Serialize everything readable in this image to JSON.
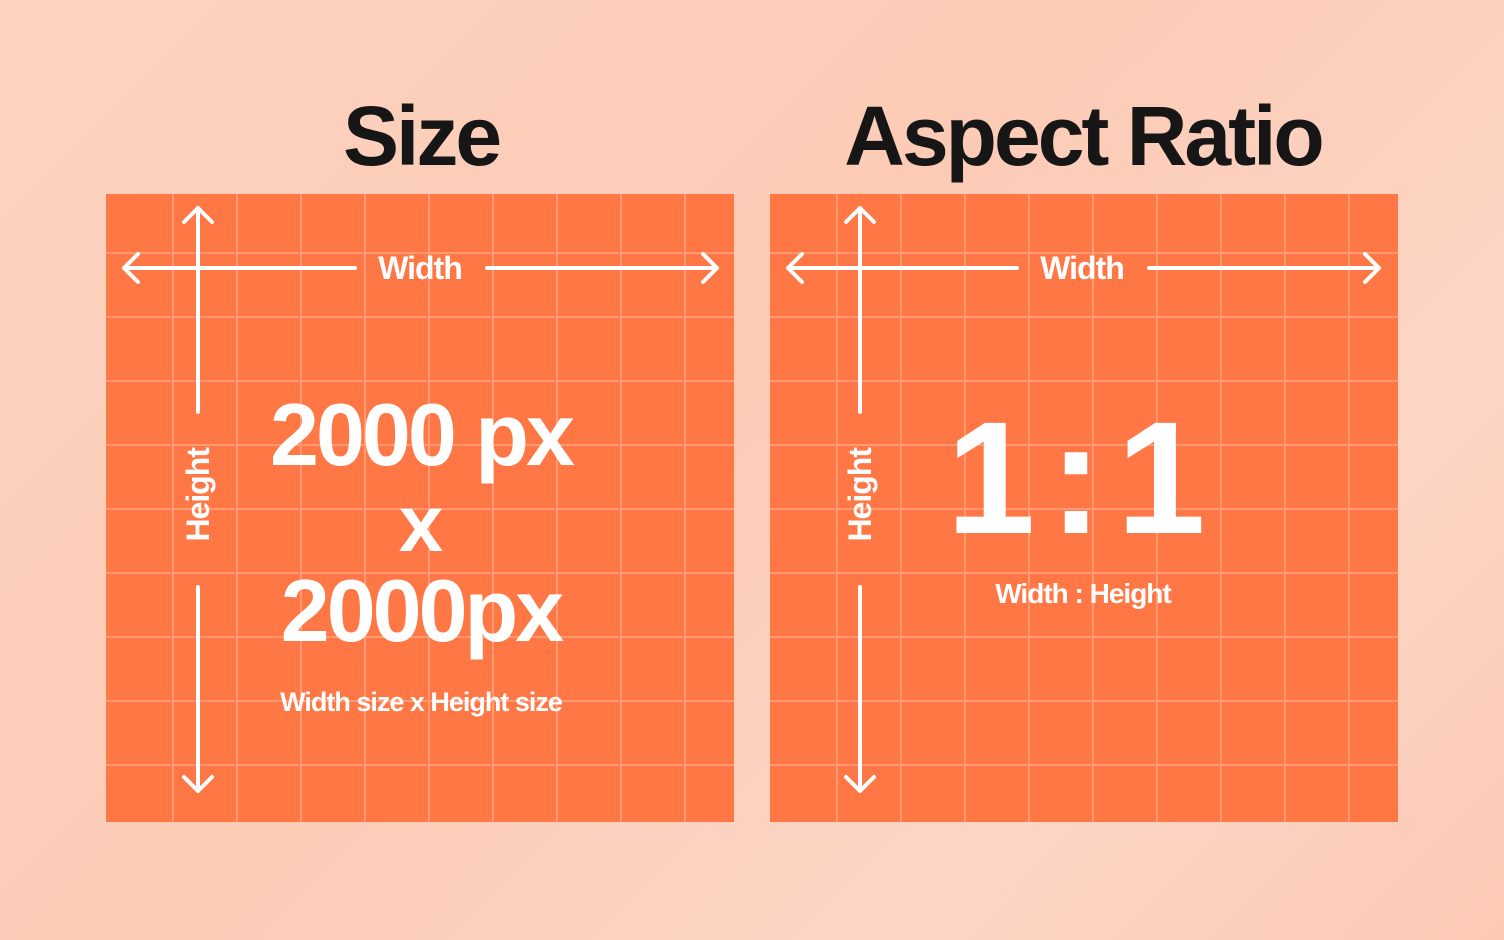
{
  "colors": {
    "panel": "#ff7744",
    "grid": "#ff9a74",
    "text": "#ffffff",
    "title": "#161616"
  },
  "size_panel": {
    "title": "Size",
    "width_label": "Width",
    "height_label": "Height",
    "line1": "2000 px",
    "line2": "x",
    "line3": "2000px",
    "caption": "Width size x Height size"
  },
  "ratio_panel": {
    "title": "Aspect Ratio",
    "width_label": "Width",
    "height_label": "Height",
    "ratio": "1:1",
    "caption": "Width : Height"
  }
}
